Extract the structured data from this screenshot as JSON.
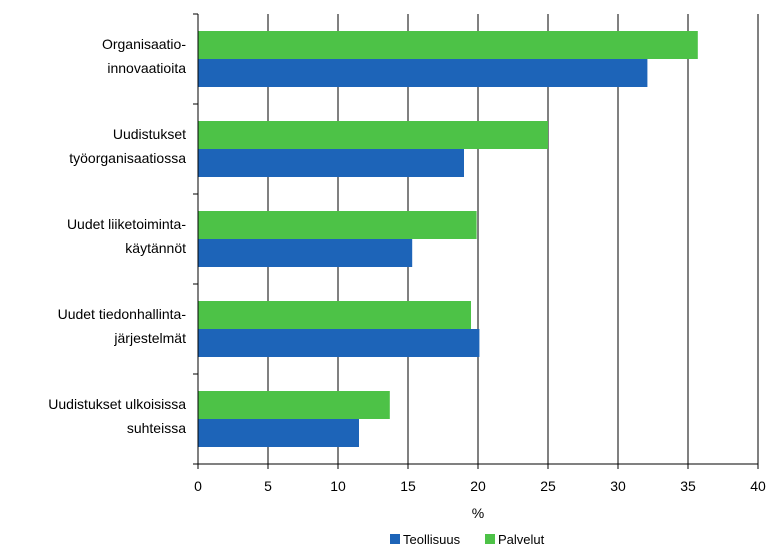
{
  "chart_data": {
    "type": "bar",
    "orientation": "horizontal",
    "categories": [
      [
        "Organisaatio-",
        "innovaatioita"
      ],
      [
        "Uudistukset",
        "työorganisaatiossa"
      ],
      [
        "Uudet liiketoiminta-",
        "käytännöt"
      ],
      [
        "Uudet tiedonhallinta-",
        "järjestelmät"
      ],
      [
        "Uudistukset ulkoisissa",
        "suhteissa"
      ]
    ],
    "series": [
      {
        "name": "Palvelut",
        "color": "#4dc247",
        "values": [
          35.7,
          25.0,
          19.9,
          19.5,
          13.7
        ]
      },
      {
        "name": "Teollisuus",
        "color": "#1d64b8",
        "values": [
          32.1,
          19.0,
          15.3,
          20.1,
          11.5
        ]
      }
    ],
    "xlabel": "%",
    "xlim": [
      0,
      40
    ],
    "xticks": [
      "0",
      "5",
      "10",
      "15",
      "20",
      "25",
      "30",
      "35",
      "40"
    ],
    "grid": "vertical",
    "legend": {
      "position": "bottom",
      "order": [
        "Teollisuus",
        "Palvelut"
      ]
    }
  }
}
